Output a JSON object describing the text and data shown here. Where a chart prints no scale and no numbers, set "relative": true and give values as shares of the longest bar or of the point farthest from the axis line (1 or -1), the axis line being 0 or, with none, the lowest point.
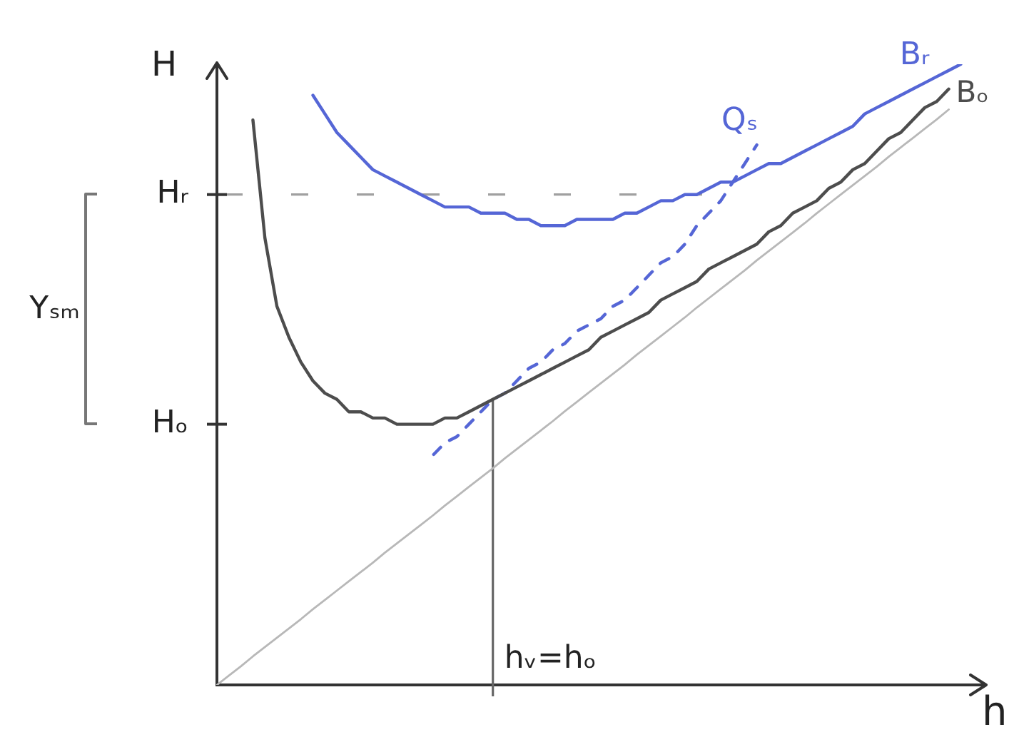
{
  "chart_data": {
    "type": "line",
    "relative": true,
    "xlabel": "h",
    "ylabel": "H",
    "categories": [
      null,
      null,
      null,
      null,
      null,
      null,
      null,
      null,
      null,
      null,
      null,
      null,
      null,
      null,
      null,
      null,
      null,
      null,
      null,
      null,
      null,
      null,
      null,
      null,
      null,
      null,
      null,
      null,
      null,
      null,
      null,
      null,
      null,
      null,
      null,
      null,
      null,
      null,
      null,
      null,
      null,
      null,
      null,
      null,
      null,
      null,
      null,
      null,
      null,
      null,
      null,
      null,
      null,
      null,
      null,
      null,
      null,
      null,
      null,
      null,
      null,
      null,
      null,
      null,
      null
    ],
    "series": [
      {
        "name": "Bₒ",
        "color": "#4d4d4d",
        "values": [
          null,
          null,
          null,
          0.91,
          0.72,
          0.61,
          0.56,
          0.52,
          0.49,
          0.47,
          0.46,
          0.44,
          0.44,
          0.43,
          0.43,
          0.42,
          0.42,
          0.42,
          0.42,
          0.43,
          0.43,
          0.44,
          0.45,
          0.46,
          0.47,
          0.48,
          0.49,
          0.5,
          0.51,
          0.52,
          0.53,
          0.54,
          0.56,
          0.57,
          0.58,
          0.59,
          0.6,
          0.62,
          0.63,
          0.64,
          0.65,
          0.67,
          0.68,
          0.69,
          0.7,
          0.71,
          0.73,
          0.74,
          0.76,
          0.77,
          0.78,
          0.8,
          0.81,
          0.83,
          0.84,
          0.86,
          0.88,
          0.89,
          0.91,
          0.93,
          0.94,
          0.96,
          null,
          null,
          null
        ]
      },
      {
        "name": "Bᵣ",
        "color": "#5566d6",
        "values": [
          null,
          null,
          null,
          null,
          null,
          null,
          null,
          null,
          0.95,
          0.92,
          0.89,
          0.87,
          0.85,
          0.83,
          0.82,
          0.81,
          0.8,
          0.79,
          0.78,
          0.77,
          0.77,
          0.77,
          0.76,
          0.76,
          0.76,
          0.75,
          0.75,
          0.74,
          0.74,
          0.74,
          0.75,
          0.75,
          0.75,
          0.75,
          0.76,
          0.76,
          0.77,
          0.78,
          0.78,
          0.79,
          0.79,
          0.8,
          0.81,
          0.81,
          0.82,
          0.83,
          0.84,
          0.84,
          0.85,
          0.86,
          0.87,
          0.88,
          0.89,
          0.9,
          0.92,
          0.93,
          0.94,
          0.95,
          0.96,
          0.97,
          0.98,
          0.99,
          1,
          null,
          null
        ]
      },
      {
        "name": "Qₛ",
        "color": "#5566d6",
        "line_style": "dashed",
        "values": [
          null,
          null,
          null,
          null,
          null,
          null,
          null,
          null,
          null,
          null,
          null,
          null,
          null,
          null,
          null,
          null,
          null,
          null,
          0.37,
          0.39,
          0.4,
          0.42,
          0.44,
          0.46,
          0.47,
          0.49,
          0.51,
          0.52,
          0.54,
          0.55,
          0.57,
          0.58,
          0.59,
          0.61,
          0.62,
          0.64,
          0.66,
          0.68,
          0.69,
          0.71,
          0.74,
          0.76,
          0.78,
          0.81,
          0.84,
          0.87,
          null,
          null,
          null,
          null,
          null,
          null,
          null,
          null,
          null,
          null,
          null,
          null,
          null,
          null,
          null,
          null,
          null,
          null,
          null
        ]
      },
      {
        "color": "#b8b8b8",
        "values": [
          0,
          0.015,
          0.03,
          0.046,
          0.061,
          0.076,
          0.091,
          0.106,
          0.122,
          0.137,
          0.152,
          0.167,
          0.182,
          0.197,
          0.213,
          0.228,
          0.243,
          0.258,
          0.273,
          0.289,
          0.304,
          0.319,
          0.334,
          0.349,
          0.365,
          0.38,
          0.395,
          0.41,
          0.425,
          0.441,
          0.456,
          0.471,
          0.486,
          0.501,
          0.516,
          0.532,
          0.547,
          0.562,
          0.577,
          0.592,
          0.608,
          0.623,
          0.638,
          0.653,
          0.668,
          0.684,
          0.699,
          0.714,
          0.729,
          0.744,
          0.76,
          0.775,
          0.79,
          0.805,
          0.82,
          0.835,
          0.851,
          0.866,
          0.881,
          0.896,
          0.911,
          0.927,
          null,
          null,
          null
        ]
      }
    ],
    "ref_lines": [
      {
        "axis": "y",
        "value": 0.79,
        "label": "Hᵣ",
        "color": "#a0a0a0",
        "line_style": "dashed"
      }
    ],
    "annotations": [
      "Hₒ",
      "Yₛₘ",
      "hᵥ=hₒ"
    ]
  }
}
